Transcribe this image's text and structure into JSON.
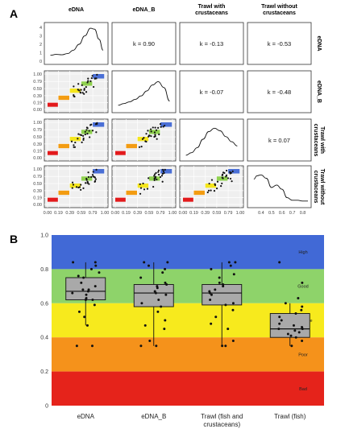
{
  "panel_a_letter": "A",
  "panel_b_letter": "B",
  "chart_data": [
    {
      "type": "scatter",
      "panel": "A",
      "variables": [
        "eDNA",
        "eDNA_B",
        "Trawl with crustaceans",
        "Trawl without crustaceans"
      ],
      "headers_top": [
        "eDNA",
        "eDNA_B",
        "Trawl with crustaceans",
        "Trawl without crustaceans"
      ],
      "headers_right": [
        "eDNA",
        "eDNA_B",
        "Trawl with crustaceans",
        "Trawl without crustaceans"
      ],
      "correlations": [
        {
          "row": 0,
          "col": 1,
          "label": "k = 0.90"
        },
        {
          "row": 0,
          "col": 2,
          "label": "k = -0.13"
        },
        {
          "row": 0,
          "col": 3,
          "label": "k = -0.53"
        },
        {
          "row": 1,
          "col": 2,
          "label": "k = -0.07"
        },
        {
          "row": 1,
          "col": 3,
          "label": "k = -0.48"
        },
        {
          "row": 2,
          "col": 3,
          "label": "k = 0.07"
        }
      ],
      "scatter_ticks": [
        "0.00",
        "0.19",
        "0.39",
        "0.59",
        "0.79",
        "1.00"
      ],
      "density_y_ticks": [
        "0",
        "1",
        "2",
        "3",
        "4"
      ],
      "density_x_ticks_last": [
        "0.4",
        "0.5",
        "0.6",
        "0.7",
        "0.8"
      ],
      "quality_squares": [
        {
          "from": 0.0,
          "to": 0.19,
          "color": "#e31a1c"
        },
        {
          "from": 0.19,
          "to": 0.39,
          "color": "#f39c12"
        },
        {
          "from": 0.39,
          "to": 0.59,
          "color": "#f5e61c"
        },
        {
          "from": 0.59,
          "to": 0.79,
          "color": "#8fd14f"
        },
        {
          "from": 0.79,
          "to": 1.0,
          "color": "#4a6fd6"
        }
      ],
      "densities": [
        {
          "var": "eDNA",
          "x": [
            0.05,
            0.15,
            0.25,
            0.35,
            0.45,
            0.55,
            0.65,
            0.75,
            0.82,
            0.9,
            0.97
          ],
          "y": [
            0.7,
            0.8,
            0.75,
            0.9,
            1.3,
            2.0,
            3.0,
            3.9,
            3.8,
            2.6,
            1.3
          ]
        },
        {
          "var": "eDNA_B",
          "x": [
            0.05,
            0.15,
            0.25,
            0.35,
            0.45,
            0.55,
            0.65,
            0.75,
            0.85,
            0.95
          ],
          "y": [
            0.5,
            0.7,
            0.9,
            1.2,
            1.6,
            2.2,
            2.9,
            3.3,
            2.6,
            1.0
          ]
        },
        {
          "var": "Trawl with crustaceans",
          "x": [
            0.05,
            0.15,
            0.25,
            0.35,
            0.45,
            0.55,
            0.65,
            0.75,
            0.85,
            0.95
          ],
          "y": [
            0.3,
            0.6,
            1.2,
            2.2,
            3.1,
            3.5,
            3.2,
            2.5,
            1.9,
            1.4
          ]
        },
        {
          "var": "Trawl without crustaceans",
          "x": [
            0.33,
            0.36,
            0.4,
            0.45,
            0.5,
            0.55,
            0.6,
            0.65,
            0.7,
            0.75,
            0.8,
            0.85
          ],
          "y": [
            3.0,
            3.4,
            3.5,
            3.1,
            2.0,
            2.3,
            1.8,
            0.8,
            0.5,
            0.5,
            0.4,
            0.4
          ]
        }
      ]
    },
    {
      "type": "box",
      "panel": "B",
      "categories": [
        "eDNA",
        "eDNA_B",
        "Trawl (fish and crustaceans)",
        "Trawl (fish)"
      ],
      "category_lines": [
        [
          "eDNA"
        ],
        [
          "eDNA_B"
        ],
        [
          "Trawl (fish and",
          "crustaceans)"
        ],
        [
          "Trawl (fish)"
        ]
      ],
      "ylim": [
        0,
        1
      ],
      "yticks": [
        "0",
        "0.2",
        "0.4",
        "0.6",
        "0.8",
        "1.0"
      ],
      "bands": [
        {
          "label": "High",
          "from": 0.8,
          "to": 1.0,
          "color": "#4169d6"
        },
        {
          "label": "Good",
          "from": 0.6,
          "to": 0.8,
          "color": "#8ed36a"
        },
        {
          "label": "Moderate",
          "from": 0.4,
          "to": 0.6,
          "color": "#f7ea1d"
        },
        {
          "label": "Poor",
          "from": 0.2,
          "to": 0.4,
          "color": "#f5921b"
        },
        {
          "label": "Bad",
          "from": 0.0,
          "to": 0.2,
          "color": "#e5231b"
        }
      ],
      "boxes": [
        {
          "category": "eDNA",
          "whisker_low": 0.47,
          "q1": 0.62,
          "median": 0.67,
          "q3": 0.75,
          "whisker_high": 0.84
        },
        {
          "category": "eDNA_B",
          "whisker_low": 0.35,
          "q1": 0.58,
          "median": 0.66,
          "q3": 0.71,
          "whisker_high": 0.84
        },
        {
          "category": "Trawl (fish and crustaceans)",
          "whisker_low": 0.35,
          "q1": 0.59,
          "median": 0.66,
          "q3": 0.71,
          "whisker_high": 0.84
        },
        {
          "category": "Trawl (fish)",
          "whisker_low": 0.35,
          "q1": 0.4,
          "median": 0.45,
          "q3": 0.54,
          "whisker_high": 0.6
        }
      ],
      "points": [
        [
          0.35,
          0.35,
          0.47,
          0.52,
          0.55,
          0.59,
          0.62,
          0.62,
          0.63,
          0.65,
          0.66,
          0.67,
          0.68,
          0.68,
          0.7,
          0.72,
          0.75,
          0.76,
          0.78,
          0.8,
          0.82,
          0.84,
          0.84
        ],
        [
          0.35,
          0.35,
          0.38,
          0.45,
          0.47,
          0.5,
          0.55,
          0.58,
          0.6,
          0.62,
          0.65,
          0.66,
          0.67,
          0.69,
          0.7,
          0.71,
          0.72,
          0.75,
          0.78,
          0.8,
          0.82,
          0.84,
          0.84
        ],
        [
          0.35,
          0.35,
          0.38,
          0.45,
          0.48,
          0.52,
          0.56,
          0.59,
          0.6,
          0.62,
          0.65,
          0.66,
          0.67,
          0.68,
          0.7,
          0.71,
          0.72,
          0.75,
          0.77,
          0.8,
          0.82,
          0.84,
          0.84
        ],
        [
          0.35,
          0.38,
          0.4,
          0.41,
          0.42,
          0.43,
          0.44,
          0.45,
          0.45,
          0.46,
          0.47,
          0.48,
          0.5,
          0.52,
          0.54,
          0.56,
          0.58,
          0.6,
          0.63,
          0.72,
          0.84
        ]
      ]
    }
  ]
}
